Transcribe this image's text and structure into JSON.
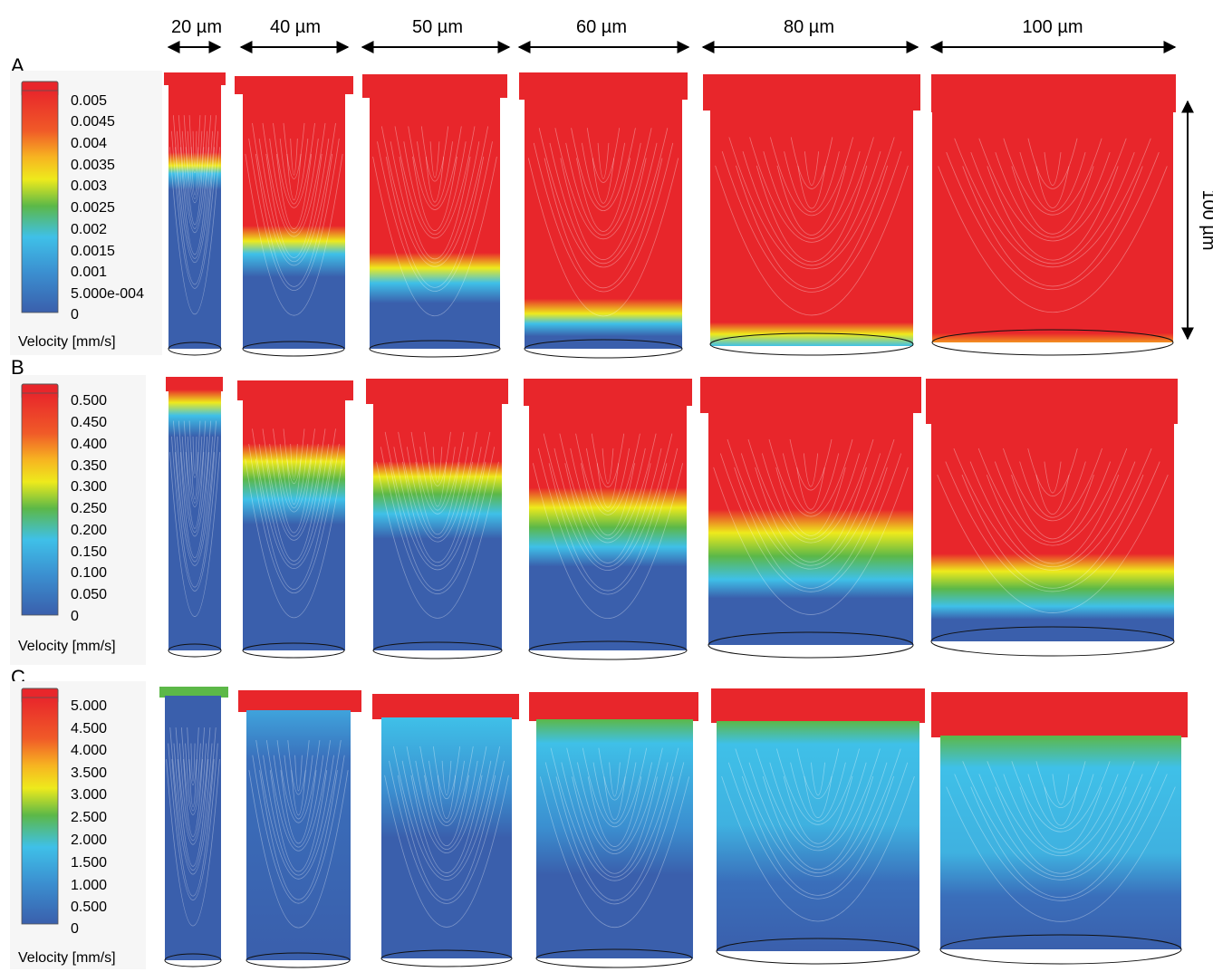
{
  "widths": [
    "20 µm",
    "40 µm",
    "50 µm",
    "60 µm",
    "80 µm",
    "100 µm"
  ],
  "height_label": "100 µm",
  "panels": [
    {
      "letter": "A",
      "legend_title": "Velocity [mm/s]",
      "ticks": [
        "0.005",
        "0.0045",
        "0.004",
        "0.0035",
        "0.003",
        "0.0025",
        "0.002",
        "0.0015",
        "0.001",
        "5.000e-004",
        "0"
      ]
    },
    {
      "letter": "B",
      "legend_title": "Velocity [mm/s]",
      "ticks": [
        "0.500",
        "0.450",
        "0.400",
        "0.350",
        "0.300",
        "0.250",
        "0.200",
        "0.150",
        "0.100",
        "0.050",
        "0"
      ]
    },
    {
      "letter": "C",
      "legend_title": "Velocity [mm/s]",
      "ticks": [
        "5.000",
        "4.500",
        "4.000",
        "3.500",
        "3.000",
        "2.500",
        "2.000",
        "1.500",
        "1.000",
        "0.500",
        "0"
      ]
    }
  ],
  "colors": {
    "high": "#e8262b",
    "orange": "#f39221",
    "yellow": "#eeea1c",
    "green": "#5cb848",
    "cyan": "#3fc0e8",
    "blue": "#3a5fac",
    "outline": "#111111"
  }
}
